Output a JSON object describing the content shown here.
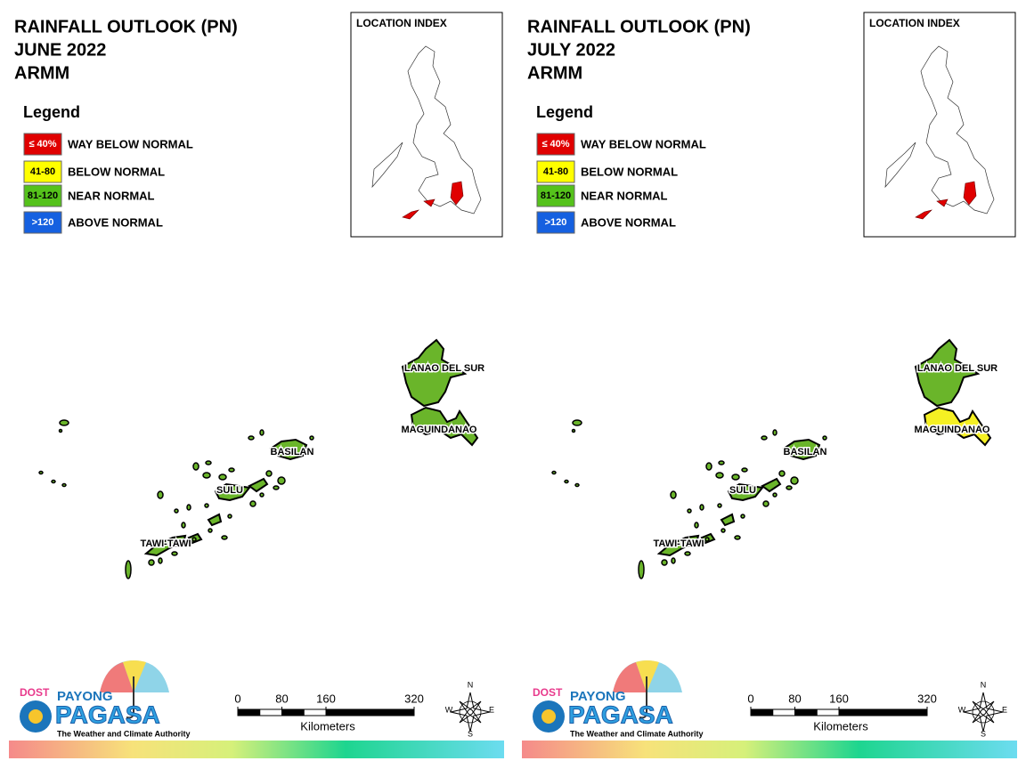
{
  "panels": [
    {
      "title": [
        "RAINFALL OUTLOOK (PN)",
        "JUNE 2022",
        "ARMM"
      ],
      "legend_title": "Legend",
      "legend": [
        {
          "swatch": "≤ 40%",
          "label": "WAY BELOW NORMAL",
          "color": "#e00000",
          "text_color": "#ffffff"
        },
        {
          "swatch": "41-80",
          "label": "BELOW NORMAL",
          "color": "#ffff00",
          "text_color": "#000000"
        },
        {
          "swatch": "81-120",
          "label": "NEAR NORMAL",
          "color": "#55c21b",
          "text_color": "#000000"
        },
        {
          "swatch": ">120",
          "label": "ABOVE NORMAL",
          "color": "#1560e0",
          "text_color": "#ffffff"
        }
      ],
      "location_index": "LOCATION INDEX",
      "regions": [
        {
          "label": "LANAO DEL SUR",
          "color": "#6ab52a"
        },
        {
          "label": "MAGUINDANAO",
          "color": "#6ab52a"
        },
        {
          "label": "BASILAN",
          "color": "#6ab52a"
        },
        {
          "label": "SULU",
          "color": "#6ab52a"
        },
        {
          "label": "TAWI-TAWI",
          "color": "#6ab52a"
        }
      ],
      "scale": {
        "ticks": [
          0,
          80,
          160,
          320
        ],
        "unit": "Kilometers"
      },
      "compass": [
        "N",
        "E",
        "S",
        "W"
      ],
      "logo": {
        "agency": "DOST",
        "brand": "PAYONG",
        "name": "PAGASA",
        "tagline": "The Weather and Climate Authority"
      }
    },
    {
      "title": [
        "RAINFALL OUTLOOK (PN)",
        "JULY 2022",
        "ARMM"
      ],
      "legend_title": "Legend",
      "legend": [
        {
          "swatch": "≤ 40%",
          "label": "WAY BELOW NORMAL",
          "color": "#e00000",
          "text_color": "#ffffff"
        },
        {
          "swatch": "41-80",
          "label": "BELOW NORMAL",
          "color": "#ffff00",
          "text_color": "#000000"
        },
        {
          "swatch": "81-120",
          "label": "NEAR NORMAL",
          "color": "#55c21b",
          "text_color": "#000000"
        },
        {
          "swatch": ">120",
          "label": "ABOVE NORMAL",
          "color": "#1560e0",
          "text_color": "#ffffff"
        }
      ],
      "location_index": "LOCATION INDEX",
      "regions": [
        {
          "label": "LANAO DEL SUR",
          "color": "#6ab52a"
        },
        {
          "label": "MAGUINDANAO",
          "color": "#f5f023"
        },
        {
          "label": "BASILAN",
          "color": "#6ab52a"
        },
        {
          "label": "SULU",
          "color": "#6ab52a"
        },
        {
          "label": "TAWI-TAWI",
          "color": "#6ab52a"
        }
      ],
      "scale": {
        "ticks": [
          0,
          80,
          160,
          320
        ],
        "unit": "Kilometers"
      },
      "compass": [
        "N",
        "E",
        "S",
        "W"
      ],
      "logo": {
        "agency": "DOST",
        "brand": "PAYONG",
        "name": "PAGASA",
        "tagline": "The Weather and Climate Authority"
      }
    }
  ]
}
